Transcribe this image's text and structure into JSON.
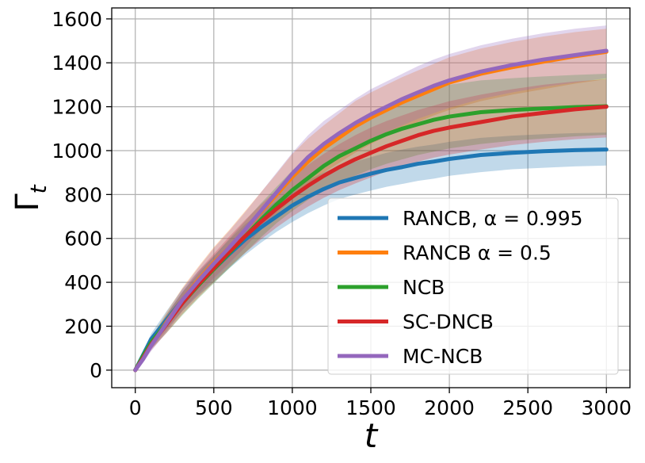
{
  "chart_data": {
    "type": "line",
    "title": "",
    "xlabel": "t",
    "ylabel": "Γ_t",
    "xlim": [
      -150,
      3150
    ],
    "ylim": [
      -80,
      1650
    ],
    "xticks": [
      0,
      500,
      1000,
      1500,
      2000,
      2500,
      3000
    ],
    "yticks": [
      0,
      200,
      400,
      600,
      800,
      1000,
      1200,
      1400,
      1600
    ],
    "grid": true,
    "legend_position": "lower-right",
    "x": [
      0,
      50,
      100,
      200,
      300,
      400,
      500,
      600,
      700,
      800,
      900,
      1000,
      1100,
      1200,
      1300,
      1400,
      1500,
      1600,
      1700,
      1800,
      1900,
      2000,
      2200,
      2400,
      2600,
      2800,
      3000
    ],
    "series": [
      {
        "name": "RANCB, α = 0.995",
        "color": "#1f77b4",
        "values": [
          0,
          70,
          140,
          230,
          320,
          395,
          460,
          530,
          595,
          650,
          700,
          750,
          790,
          825,
          855,
          875,
          895,
          912,
          925,
          940,
          950,
          962,
          980,
          990,
          997,
          1002,
          1005
        ],
        "lower": [
          0,
          55,
          110,
          190,
          270,
          340,
          400,
          465,
          525,
          580,
          630,
          675,
          715,
          750,
          780,
          800,
          818,
          835,
          848,
          862,
          872,
          885,
          902,
          915,
          922,
          928,
          932
        ],
        "upper": [
          0,
          85,
          165,
          270,
          370,
          450,
          520,
          595,
          665,
          720,
          770,
          825,
          865,
          900,
          930,
          950,
          970,
          990,
          1005,
          1018,
          1028,
          1040,
          1058,
          1068,
          1075,
          1080,
          1082
        ]
      },
      {
        "name": "RANCB α = 0.5",
        "color": "#ff7f0e",
        "values": [
          0,
          60,
          120,
          220,
          320,
          410,
          490,
          560,
          640,
          720,
          800,
          880,
          950,
          1010,
          1060,
          1110,
          1150,
          1185,
          1220,
          1250,
          1280,
          1310,
          1350,
          1380,
          1405,
          1430,
          1450
        ],
        "lower": [
          0,
          45,
          95,
          180,
          270,
          350,
          420,
          490,
          560,
          640,
          710,
          780,
          845,
          900,
          945,
          990,
          1030,
          1065,
          1100,
          1130,
          1160,
          1185,
          1225,
          1255,
          1280,
          1305,
          1325
        ],
        "upper": [
          0,
          75,
          145,
          265,
          375,
          470,
          560,
          640,
          725,
          810,
          895,
          985,
          1055,
          1115,
          1170,
          1225,
          1265,
          1300,
          1335,
          1365,
          1395,
          1425,
          1465,
          1495,
          1520,
          1540,
          1555
        ]
      },
      {
        "name": "NCB",
        "color": "#2ca02c",
        "values": [
          0,
          65,
          125,
          215,
          305,
          385,
          460,
          535,
          610,
          685,
          755,
          820,
          875,
          930,
          975,
          1010,
          1045,
          1075,
          1100,
          1120,
          1140,
          1155,
          1175,
          1185,
          1192,
          1198,
          1202
        ],
        "lower": [
          0,
          45,
          95,
          170,
          250,
          325,
          395,
          465,
          535,
          605,
          670,
          725,
          775,
          820,
          855,
          885,
          915,
          940,
          960,
          980,
          995,
          1010,
          1030,
          1045,
          1055,
          1065,
          1072
        ],
        "upper": [
          0,
          85,
          150,
          255,
          355,
          440,
          520,
          600,
          680,
          760,
          835,
          910,
          975,
          1040,
          1090,
          1135,
          1175,
          1205,
          1235,
          1260,
          1280,
          1300,
          1320,
          1330,
          1338,
          1345,
          1350
        ]
      },
      {
        "name": "SC-DNCB",
        "color": "#d62728",
        "values": [
          0,
          55,
          115,
          210,
          305,
          390,
          465,
          540,
          610,
          675,
          735,
          790,
          840,
          885,
          925,
          960,
          990,
          1020,
          1045,
          1070,
          1090,
          1105,
          1130,
          1155,
          1172,
          1188,
          1200
        ],
        "lower": [
          0,
          40,
          90,
          170,
          255,
          330,
          400,
          470,
          535,
          595,
          650,
          700,
          745,
          785,
          820,
          850,
          878,
          905,
          928,
          950,
          968,
          982,
          1005,
          1025,
          1040,
          1052,
          1060
        ],
        "upper": [
          0,
          70,
          140,
          250,
          355,
          450,
          530,
          610,
          685,
          755,
          820,
          880,
          935,
          985,
          1030,
          1070,
          1105,
          1135,
          1160,
          1185,
          1205,
          1225,
          1255,
          1280,
          1300,
          1315,
          1325
        ]
      },
      {
        "name": "MC-NCB",
        "color": "#9467bd",
        "values": [
          0,
          50,
          110,
          215,
          320,
          405,
          485,
          560,
          640,
          725,
          810,
          895,
          970,
          1030,
          1080,
          1125,
          1165,
          1200,
          1235,
          1265,
          1295,
          1320,
          1360,
          1390,
          1415,
          1435,
          1455
        ],
        "lower": [
          0,
          35,
          85,
          175,
          270,
          345,
          415,
          485,
          560,
          640,
          720,
          800,
          870,
          925,
          975,
          1015,
          1050,
          1085,
          1115,
          1145,
          1170,
          1195,
          1235,
          1265,
          1290,
          1310,
          1330
        ],
        "upper": [
          0,
          65,
          135,
          255,
          370,
          465,
          555,
          635,
          720,
          810,
          900,
          990,
          1070,
          1135,
          1185,
          1235,
          1280,
          1315,
          1350,
          1385,
          1415,
          1440,
          1480,
          1510,
          1535,
          1555,
          1570
        ]
      }
    ]
  }
}
